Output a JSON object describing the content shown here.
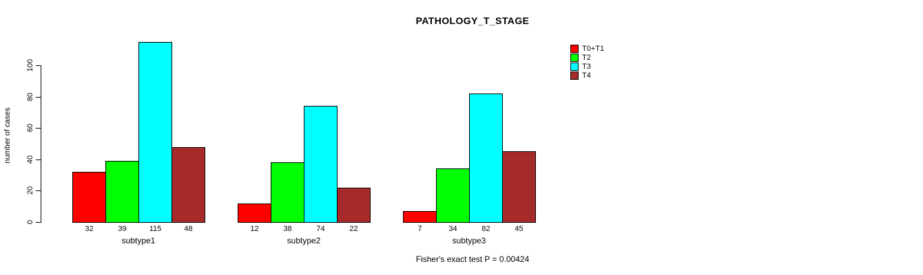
{
  "chart_data": {
    "type": "bar",
    "title": "PATHOLOGY_T_STAGE",
    "ylabel": "number of cases",
    "xlabel": "",
    "categories": [
      "subtype1",
      "subtype2",
      "subtype3"
    ],
    "series": [
      {
        "name": "T0+T1",
        "color": "#FF0000",
        "values": [
          32,
          12,
          7
        ]
      },
      {
        "name": "T2",
        "color": "#00FF00",
        "values": [
          39,
          38,
          34
        ]
      },
      {
        "name": "T3",
        "color": "#00FFFF",
        "values": [
          115,
          74,
          82
        ]
      },
      {
        "name": "T4",
        "color": "#A52A2A",
        "values": [
          48,
          22,
          45
        ]
      }
    ],
    "bar_value_labels": [
      [
        "32",
        "39",
        "115",
        "48"
      ],
      [
        "12",
        "38",
        "74",
        "22"
      ],
      [
        "7",
        "34",
        "82",
        "45"
      ]
    ],
    "yticks": [
      0,
      20,
      40,
      60,
      80,
      100
    ],
    "ylim": [
      0,
      117
    ],
    "grid": false,
    "legend_position": "top-right",
    "annotation": "Fisher's exact test P = 0.00424"
  }
}
